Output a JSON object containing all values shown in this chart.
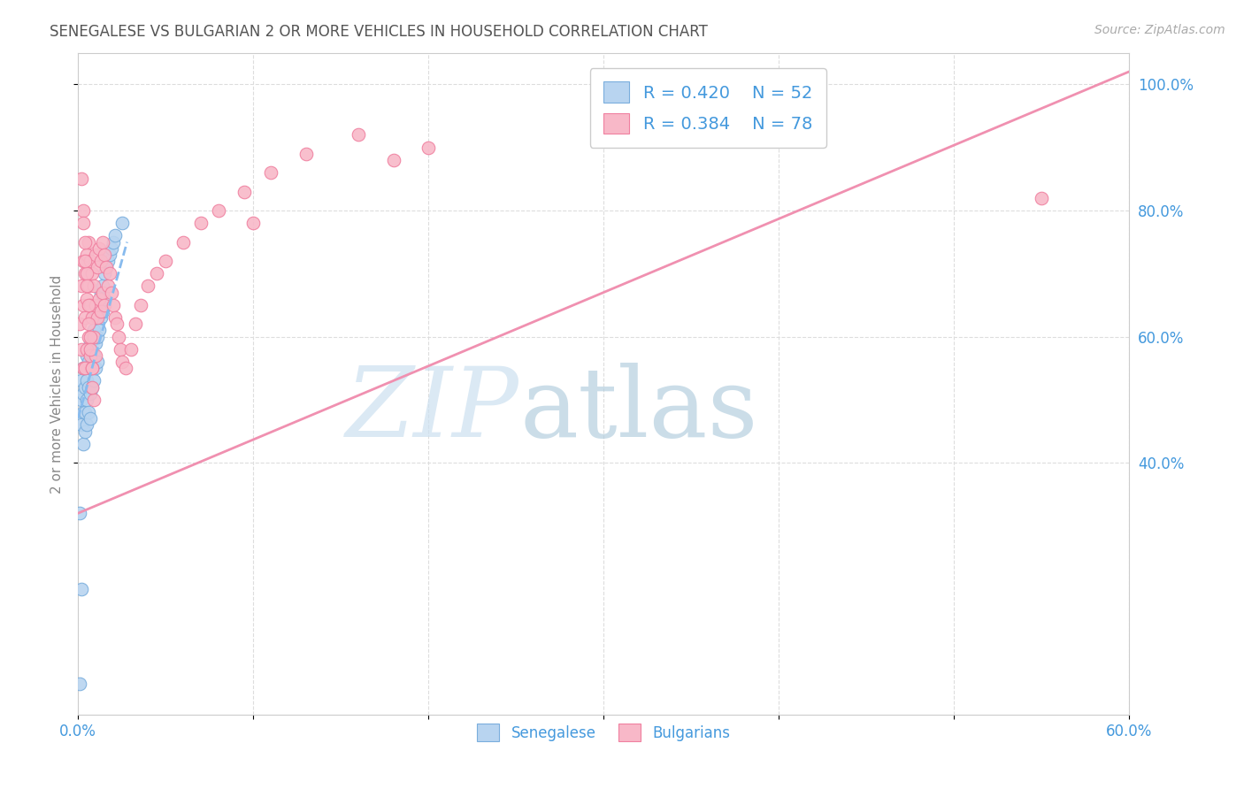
{
  "title": "SENEGALESE VS BULGARIAN 2 OR MORE VEHICLES IN HOUSEHOLD CORRELATION CHART",
  "source": "Source: ZipAtlas.com",
  "ylabel": "2 or more Vehicles in Household",
  "xlim": [
    0.0,
    0.6
  ],
  "ylim": [
    0.0,
    1.05
  ],
  "xtick_labels": [
    "0.0%",
    "",
    "",
    "",
    "",
    "",
    "60.0%"
  ],
  "xtick_values": [
    0.0,
    0.1,
    0.2,
    0.3,
    0.4,
    0.5,
    0.6
  ],
  "ytick_labels": [
    "40.0%",
    "60.0%",
    "80.0%",
    "100.0%"
  ],
  "ytick_values": [
    0.4,
    0.6,
    0.8,
    1.0
  ],
  "legend_r_senegalese": "R = 0.420",
  "legend_n_senegalese": "N = 52",
  "legend_r_bulgarians": "R = 0.384",
  "legend_n_bulgarians": "N = 78",
  "senegalese_color": "#b8d4f0",
  "bulgarians_color": "#f8b8c8",
  "senegalese_edge_color": "#7aaedd",
  "bulgarians_edge_color": "#f080a0",
  "senegalese_line_color": "#88bbee",
  "bulgarians_line_color": "#f090b0",
  "background_color": "#ffffff",
  "grid_color": "#dddddd",
  "text_color_blue": "#4499dd",
  "axis_tick_color": "#4499dd",
  "title_color": "#555555",
  "ylabel_color": "#888888",
  "source_color": "#aaaaaa",
  "sen_line_x0": 0.0,
  "sen_line_y0": 0.47,
  "sen_line_x1": 0.028,
  "sen_line_y1": 0.75,
  "bul_line_x0": 0.0,
  "bul_line_y0": 0.32,
  "bul_line_x1": 0.6,
  "bul_line_y1": 1.02,
  "senegalese_x": [
    0.001,
    0.001,
    0.002,
    0.002,
    0.002,
    0.003,
    0.003,
    0.003,
    0.003,
    0.004,
    0.004,
    0.004,
    0.004,
    0.005,
    0.005,
    0.005,
    0.005,
    0.006,
    0.006,
    0.006,
    0.007,
    0.007,
    0.007,
    0.007,
    0.008,
    0.008,
    0.008,
    0.009,
    0.009,
    0.009,
    0.01,
    0.01,
    0.01,
    0.011,
    0.011,
    0.011,
    0.012,
    0.012,
    0.013,
    0.013,
    0.014,
    0.014,
    0.015,
    0.015,
    0.016,
    0.017,
    0.018,
    0.019,
    0.02,
    0.021,
    0.002,
    0.025
  ],
  "senegalese_y": [
    0.32,
    0.05,
    0.5,
    0.53,
    0.46,
    0.51,
    0.55,
    0.48,
    0.43,
    0.55,
    0.52,
    0.48,
    0.45,
    0.57,
    0.53,
    0.5,
    0.46,
    0.56,
    0.52,
    0.48,
    0.59,
    0.55,
    0.51,
    0.47,
    0.6,
    0.56,
    0.52,
    0.61,
    0.57,
    0.53,
    0.63,
    0.59,
    0.55,
    0.64,
    0.6,
    0.56,
    0.65,
    0.61,
    0.67,
    0.63,
    0.68,
    0.64,
    0.7,
    0.66,
    0.71,
    0.72,
    0.73,
    0.74,
    0.75,
    0.76,
    0.2,
    0.78
  ],
  "bulgarians_x": [
    0.001,
    0.002,
    0.002,
    0.003,
    0.003,
    0.003,
    0.004,
    0.004,
    0.004,
    0.005,
    0.005,
    0.005,
    0.006,
    0.006,
    0.006,
    0.007,
    0.007,
    0.007,
    0.008,
    0.008,
    0.008,
    0.009,
    0.009,
    0.01,
    0.01,
    0.01,
    0.011,
    0.011,
    0.012,
    0.012,
    0.013,
    0.013,
    0.014,
    0.014,
    0.015,
    0.015,
    0.016,
    0.017,
    0.018,
    0.019,
    0.02,
    0.021,
    0.022,
    0.023,
    0.024,
    0.025,
    0.027,
    0.03,
    0.033,
    0.036,
    0.04,
    0.045,
    0.05,
    0.06,
    0.07,
    0.08,
    0.095,
    0.11,
    0.13,
    0.16,
    0.002,
    0.003,
    0.004,
    0.005,
    0.006,
    0.007,
    0.008,
    0.009,
    0.003,
    0.004,
    0.005,
    0.006,
    0.007,
    0.008,
    0.55,
    0.18,
    0.2,
    0.1
  ],
  "bulgarians_y": [
    0.62,
    0.68,
    0.58,
    0.72,
    0.65,
    0.55,
    0.7,
    0.63,
    0.55,
    0.73,
    0.66,
    0.58,
    0.75,
    0.68,
    0.6,
    0.72,
    0.65,
    0.57,
    0.7,
    0.63,
    0.55,
    0.68,
    0.6,
    0.73,
    0.65,
    0.57,
    0.71,
    0.63,
    0.74,
    0.66,
    0.72,
    0.64,
    0.75,
    0.67,
    0.73,
    0.65,
    0.71,
    0.68,
    0.7,
    0.67,
    0.65,
    0.63,
    0.62,
    0.6,
    0.58,
    0.56,
    0.55,
    0.58,
    0.62,
    0.65,
    0.68,
    0.7,
    0.72,
    0.75,
    0.78,
    0.8,
    0.83,
    0.86,
    0.89,
    0.92,
    0.85,
    0.8,
    0.75,
    0.7,
    0.65,
    0.6,
    0.55,
    0.5,
    0.78,
    0.72,
    0.68,
    0.62,
    0.58,
    0.52,
    0.82,
    0.88,
    0.9,
    0.78
  ]
}
